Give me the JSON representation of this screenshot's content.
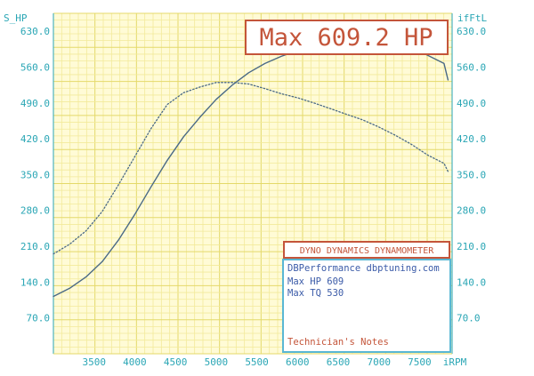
{
  "colors": {
    "grid_minor": "#f2ea9a",
    "grid_major": "#e4d96a",
    "plot_bg": "#fffbd6",
    "axis_text": "#2aa6b5",
    "curve": "#4a6a86",
    "box_red": "#c4553a",
    "box_blue": "#59b7d4",
    "info_text": "#3b5ba8"
  },
  "header": {
    "left_axis_title": "S_HP",
    "right_axis_title": "ifFtL",
    "max_label": "Max 609.2 HP"
  },
  "legend_box": {
    "title": "DYNO DYNAMICS DYNAMOMETER",
    "company_line": "DBPerformance dbptuning.com",
    "max_hp_line": "Max HP 609",
    "max_tq_line": "Max TQ 530",
    "notes_label": "Technician's Notes"
  },
  "chart_data": {
    "type": "line",
    "title": "Max 609.2 HP",
    "xlabel": "iRPM",
    "ylabel_left": "S_HP",
    "ylabel_right": "ifFtL",
    "xlim": [
      3000,
      7900
    ],
    "ylim": [
      0,
      665
    ],
    "grid": true,
    "x_ticks": [
      3500,
      4000,
      4500,
      5000,
      5500,
      6000,
      6500,
      7000,
      7500
    ],
    "x_tick_labels": [
      "3500",
      "4000",
      "4500",
      "5000",
      "5500",
      "6000",
      "6500",
      "7000",
      "7500"
    ],
    "x_unit_label": "iRPM",
    "y_ticks": [
      70,
      140,
      210,
      280,
      350,
      420,
      490,
      560,
      630
    ],
    "y_tick_labels": [
      "70.0",
      "140.0",
      "210.0",
      "280.0",
      "350.0",
      "420.0",
      "490.0",
      "560.0",
      "630.0"
    ],
    "series": [
      {
        "role": "power",
        "style": "solid",
        "x": [
          3000,
          3200,
          3400,
          3600,
          3800,
          4000,
          4200,
          4400,
          4600,
          4800,
          5000,
          5200,
          5400,
          5600,
          5800,
          6000,
          6200,
          6400,
          6600,
          6800,
          7000,
          7200,
          7400,
          7600,
          7800,
          7850
        ],
        "y": [
          112,
          128,
          150,
          180,
          222,
          272,
          326,
          378,
          424,
          462,
          497,
          525,
          549,
          567,
          581,
          592,
          600,
          604,
          606,
          608,
          609,
          607,
          598,
          583,
          567,
          535
        ]
      },
      {
        "role": "torque",
        "style": "dotted",
        "x": [
          3000,
          3200,
          3400,
          3600,
          3800,
          4000,
          4200,
          4400,
          4600,
          4800,
          5000,
          5200,
          5400,
          5600,
          5800,
          6000,
          6200,
          6400,
          6600,
          6800,
          7000,
          7200,
          7400,
          7600,
          7800,
          7850
        ],
        "y": [
          195,
          214,
          240,
          278,
          330,
          385,
          440,
          487,
          510,
          521,
          530,
          530,
          527,
          518,
          508,
          500,
          490,
          479,
          468,
          457,
          443,
          427,
          409,
          388,
          372,
          356
        ]
      }
    ]
  }
}
